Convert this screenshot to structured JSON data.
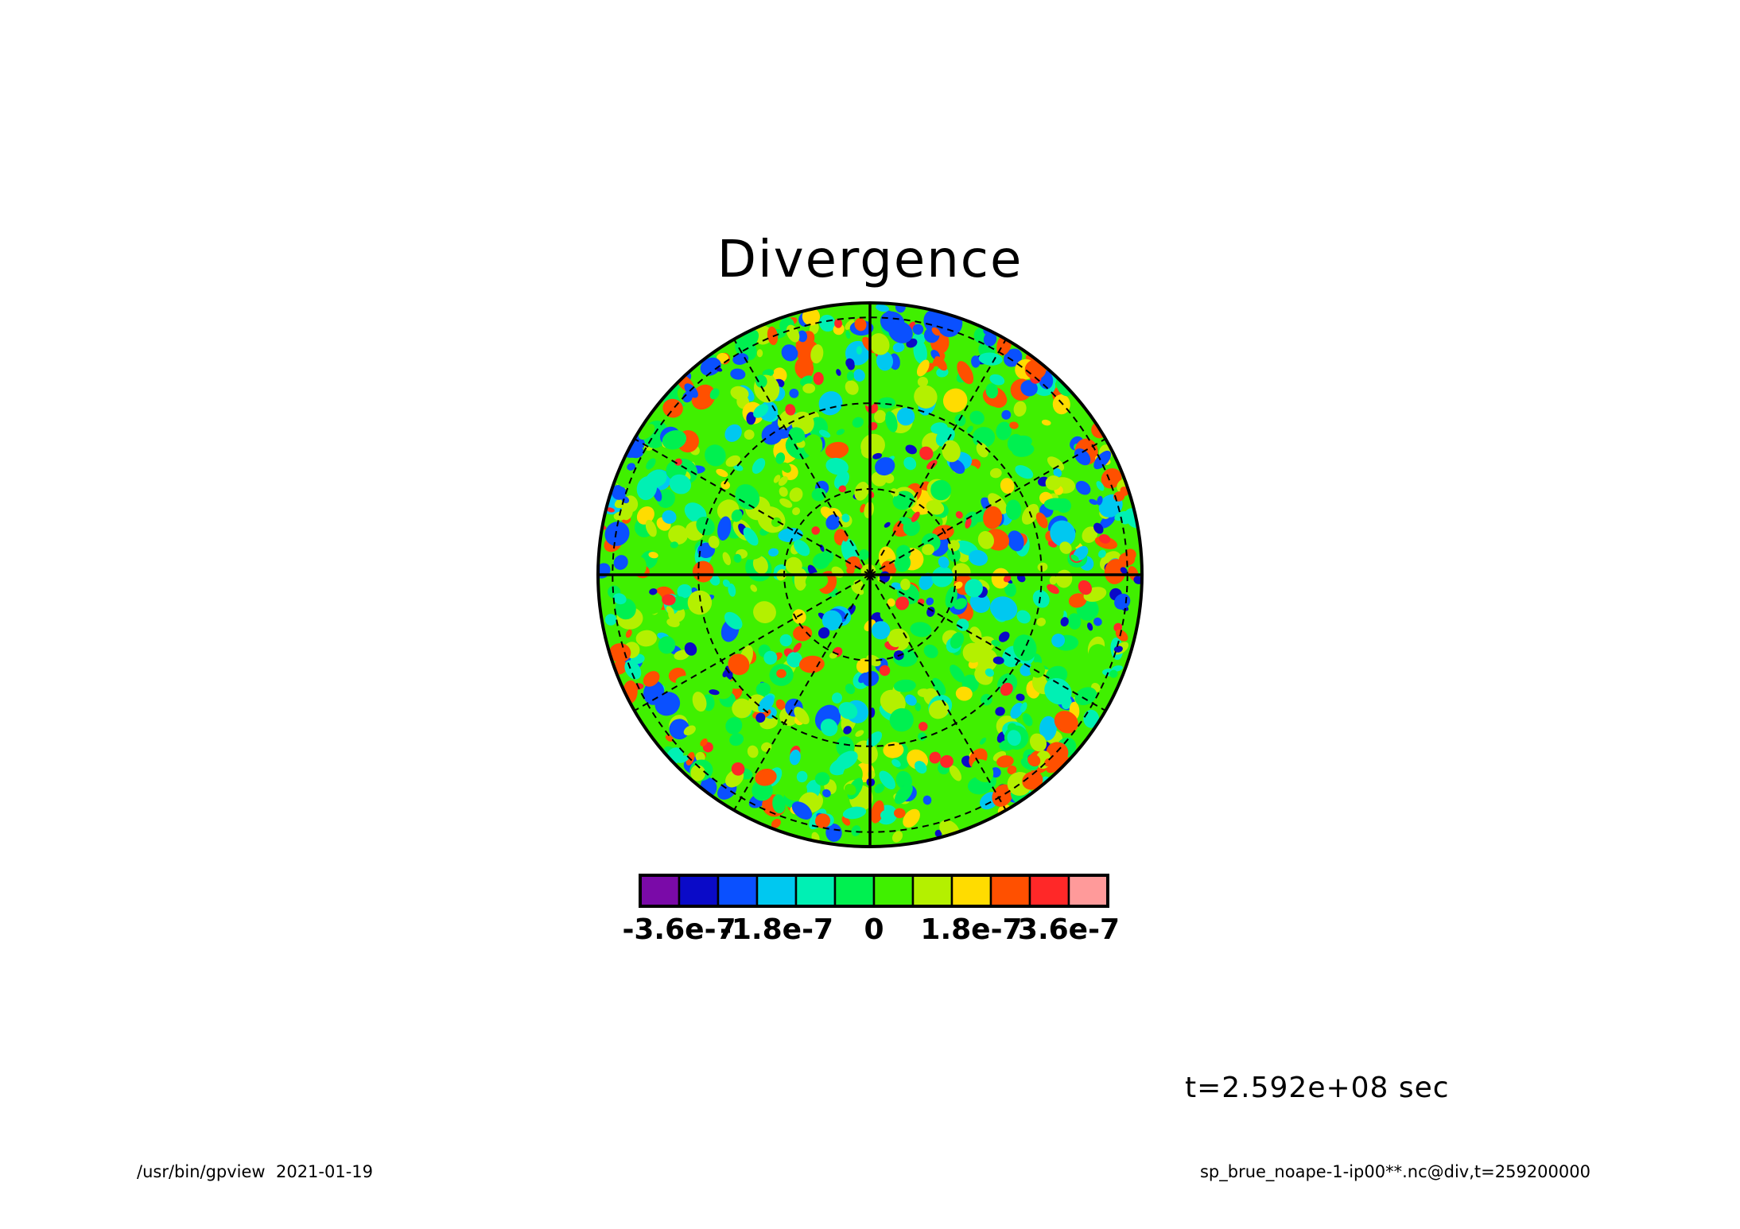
{
  "title": "Divergence",
  "time_label": "t=2.592e+08 sec",
  "footer": {
    "left_program": "/usr/bin/gpview",
    "left_date": "2021-01-19",
    "right_source": "sp_brue_noape-1-ip00**.nc@div,t=259200000"
  },
  "colorbar": {
    "colors": [
      "#7a0aa8",
      "#0a0ac8",
      "#0a50ff",
      "#00c8f0",
      "#00f0b4",
      "#00f050",
      "#40f000",
      "#b4f000",
      "#ffdc00",
      "#ff5000",
      "#ff2828",
      "#ff9a9a"
    ],
    "tick_labels": [
      "-3.6e-7",
      "-1.8e-7",
      "0",
      "1.8e-7",
      "3.6e-7"
    ],
    "tick_values": [
      -3.6e-07,
      -1.8e-07,
      0,
      1.8e-07,
      3.6e-07
    ],
    "levels": [
      -4.2e-07,
      -3.6e-07,
      -3e-07,
      -2.4e-07,
      -1.8e-07,
      -1.2e-07,
      -6e-08,
      0,
      6e-08,
      1.2e-07,
      1.8e-07,
      2.4e-07,
      3e-07,
      3.6e-07,
      4.2e-07
    ]
  },
  "map": {
    "projection": "polar stereographic (orthographic disk)",
    "graticule": {
      "latitude_circles": 3,
      "meridians_every_deg": 30
    },
    "field": "div"
  }
}
